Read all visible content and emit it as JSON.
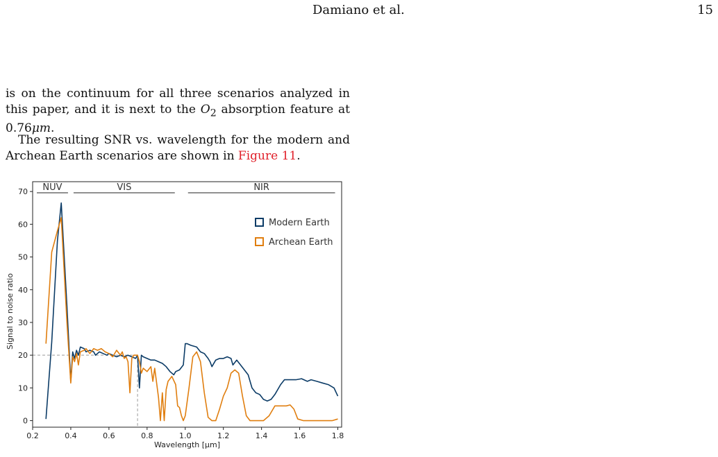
{
  "header": {
    "author": "Damiano et al.",
    "page_number": "15"
  },
  "paragraphs": {
    "p1_a": "is on the continuum for all three scenarios analyzed in this paper, and it is next to the ",
    "p1_o2": "O",
    "p1_o2_sub": "2",
    "p1_b": " absorption feature at 0.76",
    "p1_mu": "μm",
    "p1_c": ".",
    "p2_a": "The resulting SNR vs. wavelength for the modern and Archean Earth scenarios are shown in ",
    "p2_ref": "Figure 11",
    "p2_b": "."
  },
  "chart_data": {
    "type": "line",
    "xlabel": "Wavelength [μm]",
    "ylabel": "Signal to noise ratio",
    "xlim": [
      0.2,
      1.82
    ],
    "ylim": [
      -2,
      73
    ],
    "xticks": [
      0.2,
      0.4,
      0.6,
      0.8,
      1.0,
      1.2,
      1.4,
      1.6,
      1.8
    ],
    "xtick_labels": [
      "0.2",
      "0.4",
      "0.6",
      "0.8",
      "1.0",
      "1.2",
      "1.4",
      "1.6",
      "1.8"
    ],
    "yticks": [
      0,
      10,
      20,
      30,
      40,
      50,
      60,
      70
    ],
    "ytick_labels": [
      "0",
      "10",
      "20",
      "30",
      "40",
      "50",
      "60",
      "70"
    ],
    "legend_position": "upper-right",
    "bands": [
      {
        "label": "NUV",
        "x_start": 0.2,
        "x_end": 0.4
      },
      {
        "label": "VIS",
        "x_start": 0.4,
        "x_end": 0.96
      },
      {
        "label": "NIR",
        "x_start": 1.0,
        "x_end": 1.8
      }
    ],
    "reference_lines": {
      "y": 20,
      "x": 0.75
    },
    "series": [
      {
        "name": "Modern Earth",
        "color": "#0b3b66",
        "x": [
          0.27,
          0.3,
          0.33,
          0.35,
          0.38,
          0.4,
          0.41,
          0.42,
          0.43,
          0.44,
          0.45,
          0.47,
          0.48,
          0.5,
          0.52,
          0.53,
          0.55,
          0.57,
          0.59,
          0.6,
          0.62,
          0.64,
          0.66,
          0.68,
          0.7,
          0.72,
          0.74,
          0.75,
          0.76,
          0.77,
          0.78,
          0.8,
          0.82,
          0.84,
          0.86,
          0.88,
          0.9,
          0.92,
          0.94,
          0.95,
          0.97,
          0.99,
          1.0,
          1.01,
          1.03,
          1.06,
          1.08,
          1.1,
          1.12,
          1.13,
          1.14,
          1.16,
          1.18,
          1.2,
          1.22,
          1.24,
          1.25,
          1.27,
          1.29,
          1.31,
          1.33,
          1.35,
          1.37,
          1.39,
          1.41,
          1.43,
          1.45,
          1.47,
          1.5,
          1.52,
          1.55,
          1.58,
          1.61,
          1.64,
          1.66,
          1.69,
          1.72,
          1.75,
          1.78,
          1.8
        ],
        "y": [
          0.5,
          24,
          55,
          66.5,
          35,
          12,
          21,
          19,
          21.5,
          20,
          22.5,
          22,
          21,
          21.5,
          21,
          20,
          21,
          20.5,
          20,
          20.5,
          20,
          19.5,
          20,
          19.5,
          20,
          19.5,
          19,
          20,
          10,
          20,
          19.5,
          19,
          18.5,
          18.5,
          18,
          17.5,
          16.5,
          15,
          14,
          15,
          15.5,
          17,
          23.5,
          23.5,
          23,
          22.5,
          21,
          20.5,
          19,
          18,
          16.5,
          18.5,
          19,
          19,
          19.5,
          19,
          17,
          18.5,
          17,
          15.5,
          14,
          10,
          8.5,
          8,
          6.5,
          6,
          6.5,
          8,
          11,
          12.5,
          12.5,
          12.5,
          12.8,
          12,
          12.5,
          12,
          11.5,
          11,
          10,
          7.5
        ]
      },
      {
        "name": "Archean Earth",
        "color": "#e07e0f",
        "x": [
          0.27,
          0.3,
          0.33,
          0.35,
          0.38,
          0.4,
          0.41,
          0.42,
          0.43,
          0.44,
          0.45,
          0.47,
          0.48,
          0.5,
          0.52,
          0.54,
          0.56,
          0.58,
          0.6,
          0.62,
          0.64,
          0.66,
          0.67,
          0.68,
          0.69,
          0.7,
          0.71,
          0.72,
          0.73,
          0.74,
          0.75,
          0.76,
          0.77,
          0.78,
          0.8,
          0.82,
          0.83,
          0.84,
          0.86,
          0.87,
          0.88,
          0.89,
          0.9,
          0.91,
          0.93,
          0.95,
          0.96,
          0.97,
          0.98,
          0.99,
          1.0,
          1.02,
          1.04,
          1.06,
          1.08,
          1.1,
          1.12,
          1.14,
          1.16,
          1.18,
          1.2,
          1.22,
          1.24,
          1.26,
          1.28,
          1.3,
          1.32,
          1.34,
          1.36,
          1.38,
          1.41,
          1.44,
          1.47,
          1.5,
          1.53,
          1.55,
          1.57,
          1.59,
          1.62,
          1.64,
          1.66,
          1.7,
          1.74,
          1.77,
          1.8
        ],
        "y": [
          23.5,
          51.5,
          58,
          62,
          30,
          11.5,
          19.5,
          18,
          20.5,
          17,
          21,
          21.5,
          22,
          20.5,
          22,
          21.5,
          22,
          21,
          20.5,
          19.5,
          21.5,
          20,
          21,
          19,
          19.5,
          18,
          8.5,
          19,
          20,
          20,
          20,
          18,
          14.5,
          16,
          15,
          16.5,
          12,
          16,
          7,
          0,
          8.5,
          0,
          9.5,
          12,
          13.5,
          11,
          4.5,
          4,
          1.5,
          0,
          1.5,
          10,
          19.5,
          21,
          18,
          8.5,
          1,
          0,
          0,
          3.5,
          7.5,
          10,
          14.5,
          15.5,
          14.5,
          7.5,
          1.5,
          0,
          0,
          0,
          0,
          1.5,
          4.5,
          4.5,
          4.5,
          4.8,
          3.5,
          0.5,
          0,
          0,
          0,
          0,
          0,
          0,
          0.5
        ]
      }
    ]
  }
}
